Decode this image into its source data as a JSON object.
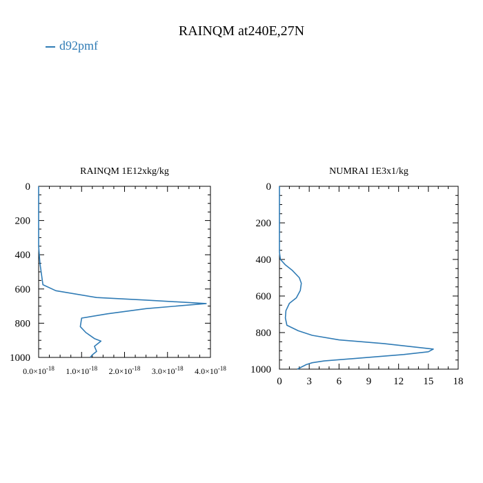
{
  "title": "RAINQM at240E,27N",
  "legend": {
    "label": "d92pmf",
    "color": "#2f7bb5"
  },
  "chart_data": [
    {
      "type": "line",
      "title": "RAINQM  1E12xkg/kg",
      "y_axis": {
        "range": [
          0,
          1000
        ],
        "inverted": true,
        "ticks": [
          "0",
          "200",
          "400",
          "600",
          "800",
          "1000"
        ]
      },
      "x_axis": {
        "range": [
          0,
          4e-18
        ],
        "ticks": [
          {
            "mantissa": "0.0",
            "exp": "-18"
          },
          {
            "mantissa": "1.0",
            "exp": "-18"
          },
          {
            "mantissa": "2.0",
            "exp": "-18"
          },
          {
            "mantissa": "3.0",
            "exp": "-18"
          },
          {
            "mantissa": "4.0",
            "exp": "-18"
          }
        ]
      },
      "series": [
        {
          "name": "d92pmf",
          "x": [
            0,
            0,
            3e-20,
            1e-19,
            4e-19,
            1.35e-18,
            2.5e-18,
            3.9e-18,
            2.5e-18,
            1.6e-18,
            1e-18,
            9.7e-19,
            1.1e-18,
            1.3e-18,
            1.45e-18,
            1.3e-18,
            1.35e-18,
            1.25e-18,
            1.2e-18
          ],
          "y": [
            0,
            350,
            450,
            575,
            610,
            650,
            665,
            685,
            715,
            745,
            770,
            820,
            855,
            890,
            905,
            935,
            965,
            985,
            1000
          ]
        }
      ]
    },
    {
      "type": "line",
      "title": "NUMRAI  1E3x1/kg",
      "y_axis": {
        "range": [
          0,
          1000
        ],
        "inverted": true,
        "ticks": [
          "0",
          "200",
          "400",
          "600",
          "800",
          "1000"
        ]
      },
      "x_axis": {
        "range": [
          0,
          18
        ],
        "ticks": [
          {
            "mantissa": "0"
          },
          {
            "mantissa": "3"
          },
          {
            "mantissa": "6"
          },
          {
            "mantissa": "9"
          },
          {
            "mantissa": "12"
          },
          {
            "mantissa": "15"
          },
          {
            "mantissa": "18"
          }
        ]
      },
      "series": [
        {
          "name": "d92pmf",
          "x": [
            0,
            0,
            0.1,
            0.6,
            1.3,
            2.0,
            2.2,
            2.1,
            1.7,
            1.0,
            0.65,
            0.6,
            0.75,
            1.9,
            3.3,
            6.0,
            10.5,
            15.5,
            15.0,
            12.5,
            8.0,
            4.5,
            3.3,
            2.7,
            1.8
          ],
          "y": [
            0,
            360,
            400,
            430,
            460,
            500,
            530,
            570,
            610,
            640,
            680,
            720,
            760,
            790,
            815,
            840,
            860,
            890,
            905,
            920,
            940,
            955,
            965,
            975,
            1000
          ]
        }
      ]
    }
  ]
}
